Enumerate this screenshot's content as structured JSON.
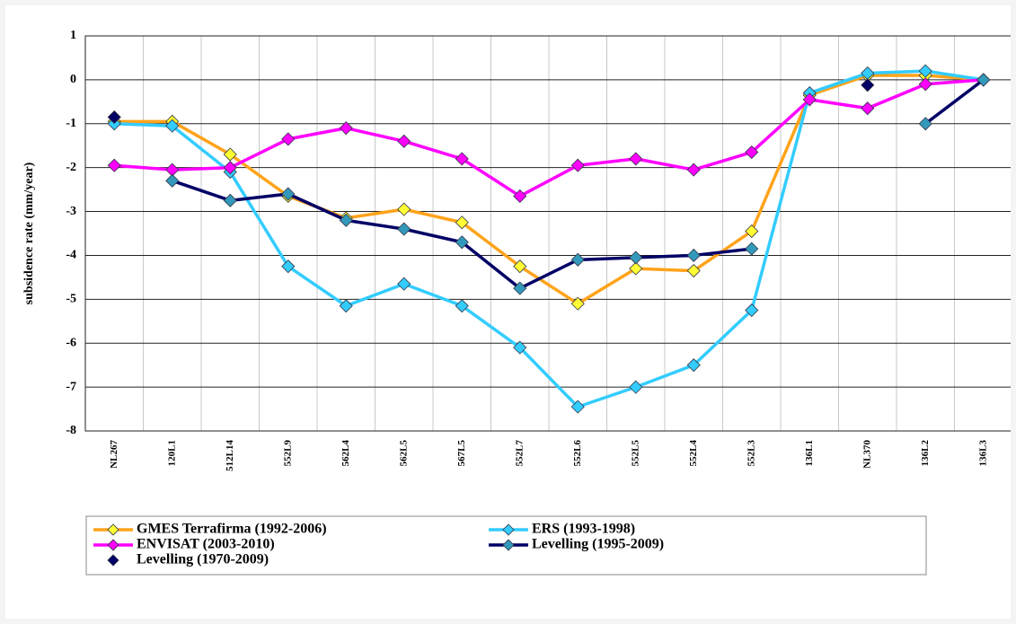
{
  "chart_data": {
    "type": "line",
    "y_label": "subsidence rate (mm/year)",
    "categories": [
      "NL267",
      "120L1",
      "512L14",
      "552L9",
      "562L4",
      "562L5",
      "567L5",
      "552L7",
      "552L6",
      "552L5",
      "552L4",
      "552L3",
      "136L1",
      "NL370",
      "136L2",
      "136L3"
    ],
    "series": [
      {
        "name": "GMES Terrafirma (1992-2006)",
        "color": "#ffa31a",
        "marker_color": "#ffff33",
        "line": true,
        "values": [
          -0.95,
          -0.95,
          -1.7,
          -2.65,
          -3.15,
          -2.95,
          -3.25,
          -4.25,
          -5.1,
          -4.3,
          -4.35,
          -3.45,
          -0.35,
          0.1,
          0.1,
          0
        ]
      },
      {
        "name": "ERS (1993-1998)",
        "color": "#33ccff",
        "marker_color": "#33ccff",
        "line": true,
        "values": [
          -1.0,
          -1.05,
          -2.1,
          -4.25,
          -5.15,
          -4.65,
          -5.15,
          -6.1,
          -7.45,
          -7.0,
          -6.5,
          -5.25,
          -0.3,
          0.15,
          0.2,
          0
        ]
      },
      {
        "name": "ENVISAT (2003-2010)",
        "color": "#ff00ff",
        "marker_color": "#ff00ff",
        "line": true,
        "values": [
          -1.95,
          -2.05,
          -2.0,
          -1.35,
          -1.1,
          -1.4,
          -1.8,
          -2.65,
          -1.95,
          -1.8,
          -2.05,
          -1.65,
          -0.45,
          -0.65,
          -0.1,
          0
        ]
      },
      {
        "name": "Levelling (1995-2009)",
        "color": "#000066",
        "marker_color": "#3399bb",
        "line": true,
        "values": [
          null,
          -2.3,
          -2.75,
          -2.6,
          -3.2,
          -3.4,
          -3.7,
          -4.75,
          -4.1,
          -4.05,
          -4.0,
          -3.85,
          null,
          null,
          -1.0,
          0
        ]
      },
      {
        "name": "Levelling (1970-2009)",
        "color": "#000066",
        "marker_color": "#000066",
        "line": false,
        "values": [
          -0.85,
          null,
          null,
          null,
          null,
          null,
          null,
          null,
          null,
          null,
          null,
          null,
          null,
          -0.12,
          null,
          null
        ]
      }
    ],
    "ylim": [
      -8,
      1
    ],
    "yticks": [
      -8,
      -7,
      -6,
      -5,
      -4,
      -3,
      -2,
      -1,
      0,
      1
    ],
    "grid": true
  }
}
